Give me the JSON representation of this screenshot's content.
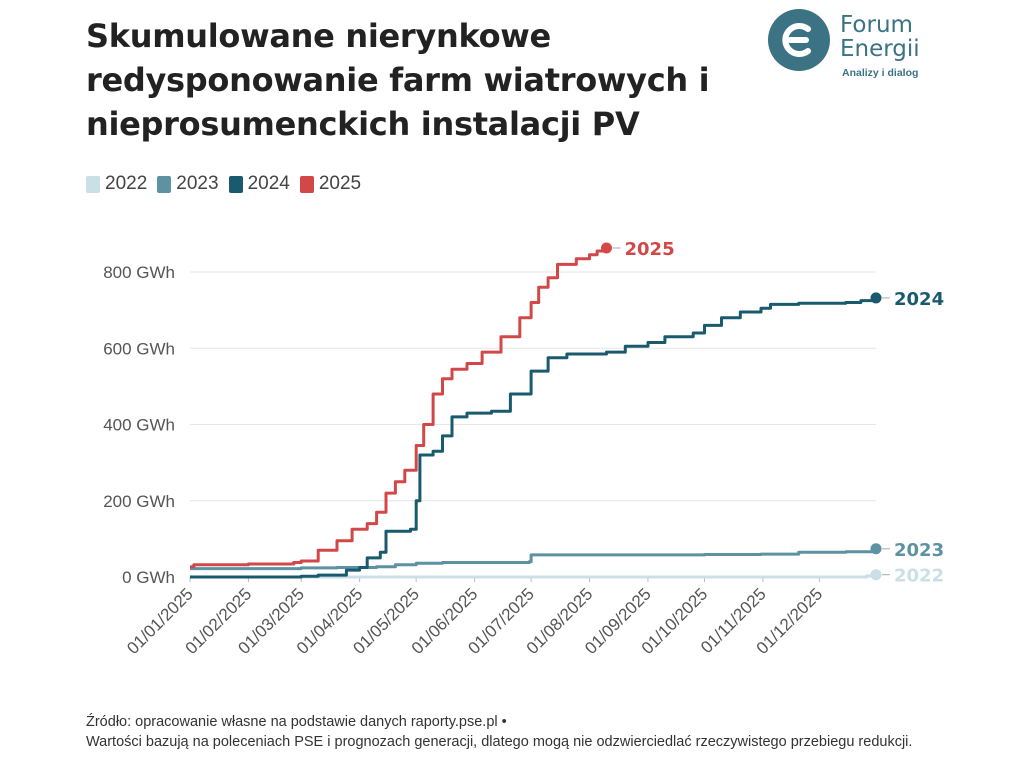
{
  "title": "Skumulowane nierynkowe redysponowanie farm wiatrowych i nieprosumenckich instalacji PV",
  "logo": {
    "name_line1": "Forum",
    "name_line2": "Energii",
    "tagline": "Analizy i dialog",
    "color": "#3b7385"
  },
  "footer": {
    "line1": "Źródło: opracowanie własne na podstawie danych raporty.pse.pl •",
    "line2": "Wartości bazują na poleceniach PSE i prognozach generacji, dlatego mogą nie odzwierciedlać rzeczywistego przebiegu redukcji."
  },
  "chart_data": {
    "type": "line",
    "x_axis": {
      "type": "date",
      "min": "2025-01-01",
      "max": "2025-12-31",
      "ticks": [
        "01/01/2025",
        "01/02/2025",
        "01/03/2025",
        "01/04/2025",
        "01/05/2025",
        "01/06/2025",
        "01/07/2025",
        "01/08/2025",
        "01/09/2025",
        "01/10/2025",
        "01/11/2025",
        "01/12/2025"
      ]
    },
    "y_axis": {
      "unit": "GWh",
      "ylim": [
        0,
        900
      ],
      "ticks": [
        0,
        200,
        400,
        600,
        800
      ],
      "tick_labels": [
        "0 GWh",
        "200 GWh",
        "400 GWh",
        "600 GWh",
        "800 GWh"
      ]
    },
    "grid": "horizontal",
    "legend_position": "top-left",
    "series": [
      {
        "name": "2022",
        "color": "#c9e0e7",
        "end_label": "2022",
        "points": [
          [
            "2025-01-01",
            0
          ],
          [
            "2025-12-01",
            0
          ],
          [
            "2025-12-26",
            3
          ],
          [
            "2025-12-31",
            6
          ]
        ]
      },
      {
        "name": "2023",
        "color": "#5d92a2",
        "end_label": "2023",
        "points": [
          [
            "2025-01-01",
            22
          ],
          [
            "2025-02-10",
            22
          ],
          [
            "2025-03-01",
            24
          ],
          [
            "2025-03-20",
            25
          ],
          [
            "2025-04-10",
            27
          ],
          [
            "2025-04-20",
            32
          ],
          [
            "2025-05-01",
            36
          ],
          [
            "2025-05-15",
            38
          ],
          [
            "2025-06-01",
            38
          ],
          [
            "2025-06-30",
            40
          ],
          [
            "2025-07-01",
            58
          ],
          [
            "2025-08-15",
            58
          ],
          [
            "2025-09-15",
            58
          ],
          [
            "2025-10-01",
            59
          ],
          [
            "2025-10-31",
            60
          ],
          [
            "2025-11-20",
            65
          ],
          [
            "2025-12-15",
            66
          ],
          [
            "2025-12-29",
            68
          ],
          [
            "2025-12-31",
            74
          ]
        ]
      },
      {
        "name": "2024",
        "color": "#1a5a6e",
        "end_label": "2024",
        "points": [
          [
            "2025-01-01",
            0
          ],
          [
            "2025-03-01",
            2
          ],
          [
            "2025-03-10",
            5
          ],
          [
            "2025-03-25",
            18
          ],
          [
            "2025-04-01",
            25
          ],
          [
            "2025-04-05",
            50
          ],
          [
            "2025-04-12",
            65
          ],
          [
            "2025-04-15",
            120
          ],
          [
            "2025-04-28",
            125
          ],
          [
            "2025-05-01",
            200
          ],
          [
            "2025-05-03",
            320
          ],
          [
            "2025-05-10",
            330
          ],
          [
            "2025-05-15",
            370
          ],
          [
            "2025-05-20",
            420
          ],
          [
            "2025-05-28",
            430
          ],
          [
            "2025-06-10",
            435
          ],
          [
            "2025-06-20",
            480
          ],
          [
            "2025-07-01",
            540
          ],
          [
            "2025-07-10",
            575
          ],
          [
            "2025-07-20",
            585
          ],
          [
            "2025-08-01",
            585
          ],
          [
            "2025-08-10",
            590
          ],
          [
            "2025-08-20",
            605
          ],
          [
            "2025-09-01",
            615
          ],
          [
            "2025-09-10",
            630
          ],
          [
            "2025-09-25",
            640
          ],
          [
            "2025-10-01",
            660
          ],
          [
            "2025-10-10",
            680
          ],
          [
            "2025-10-20",
            695
          ],
          [
            "2025-10-31",
            705
          ],
          [
            "2025-11-05",
            715
          ],
          [
            "2025-11-20",
            718
          ],
          [
            "2025-12-15",
            720
          ],
          [
            "2025-12-23",
            725
          ],
          [
            "2025-12-31",
            732
          ]
        ]
      },
      {
        "name": "2025",
        "color": "#d24849",
        "end_label": "2025",
        "points": [
          [
            "2025-01-01",
            27
          ],
          [
            "2025-01-03",
            32
          ],
          [
            "2025-02-01",
            34
          ],
          [
            "2025-02-25",
            38
          ],
          [
            "2025-03-01",
            42
          ],
          [
            "2025-03-10",
            70
          ],
          [
            "2025-03-20",
            95
          ],
          [
            "2025-03-28",
            125
          ],
          [
            "2025-04-05",
            140
          ],
          [
            "2025-04-10",
            170
          ],
          [
            "2025-04-15",
            220
          ],
          [
            "2025-04-20",
            250
          ],
          [
            "2025-04-25",
            280
          ],
          [
            "2025-05-01",
            345
          ],
          [
            "2025-05-05",
            400
          ],
          [
            "2025-05-10",
            480
          ],
          [
            "2025-05-15",
            520
          ],
          [
            "2025-05-20",
            545
          ],
          [
            "2025-05-28",
            560
          ],
          [
            "2025-06-05",
            590
          ],
          [
            "2025-06-15",
            630
          ],
          [
            "2025-06-25",
            680
          ],
          [
            "2025-07-01",
            720
          ],
          [
            "2025-07-05",
            760
          ],
          [
            "2025-07-10",
            785
          ],
          [
            "2025-07-15",
            820
          ],
          [
            "2025-07-25",
            835
          ],
          [
            "2025-08-01",
            845
          ],
          [
            "2025-08-05",
            855
          ],
          [
            "2025-08-10",
            863
          ]
        ]
      }
    ]
  }
}
